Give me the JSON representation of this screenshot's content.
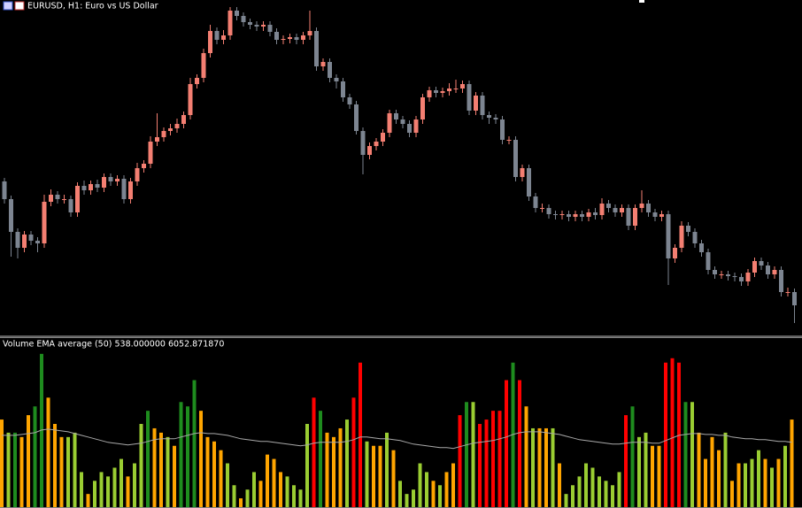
{
  "chart_data": [
    {
      "type": "candlestick",
      "title": "EURUSD, H1:  Euro vs US Dollar",
      "up_color": "#f47f72",
      "down_color": "#7d8591",
      "ylim": [
        0,
        378
      ],
      "open": [
        175,
        155,
        118,
        100,
        115,
        108,
        105,
        152,
        160,
        155,
        155,
        140,
        170,
        165,
        172,
        168,
        180,
        175,
        178,
        155,
        175,
        190,
        195,
        220,
        225,
        232,
        235,
        240,
        250,
        285,
        292,
        320,
        345,
        335,
        340,
        368,
        362,
        355,
        352,
        350,
        352,
        344,
        335,
        336,
        338,
        335,
        340,
        345,
        305,
        310,
        292,
        288,
        270,
        262,
        232,
        205,
        215,
        220,
        230,
        252,
        245,
        240,
        230,
        245,
        270,
        278,
        275,
        277,
        280,
        280,
        285,
        255,
        272,
        250,
        247,
        245,
        222,
        222,
        180,
        190,
        158,
        145,
        145,
        138,
        137,
        138,
        135,
        138,
        135,
        140,
        137,
        150,
        145,
        140,
        145,
        125,
        145,
        150,
        140,
        135,
        138,
        88,
        100,
        125,
        118,
        105,
        95,
        75,
        70,
        70,
        68,
        67,
        62,
        72,
        85,
        80,
        70,
        75,
        50,
        50
      ],
      "high": [
        179,
        159,
        122,
        119,
        119,
        112,
        160,
        166,
        164,
        160,
        159,
        174,
        176,
        176,
        177,
        184,
        184,
        182,
        182,
        179,
        196,
        199,
        226,
        252,
        236,
        240,
        246,
        254,
        292,
        296,
        325,
        352,
        349,
        346,
        372,
        372,
        366,
        359,
        356,
        356,
        356,
        348,
        340,
        342,
        342,
        344,
        368,
        349,
        314,
        314,
        296,
        292,
        274,
        266,
        236,
        219,
        224,
        234,
        256,
        256,
        249,
        244,
        249,
        274,
        282,
        282,
        281,
        286,
        290,
        289,
        289,
        276,
        276,
        254,
        251,
        249,
        226,
        226,
        194,
        194,
        162,
        150,
        149,
        142,
        142,
        142,
        142,
        142,
        144,
        145,
        156,
        154,
        149,
        149,
        149,
        149,
        165,
        154,
        144,
        142,
        142,
        104,
        130,
        129,
        122,
        109,
        99,
        79,
        74,
        74,
        72,
        71,
        76,
        89,
        89,
        84,
        79,
        79,
        55,
        54
      ],
      "low": [
        150,
        90,
        88,
        95,
        103,
        95,
        100,
        147,
        150,
        150,
        135,
        135,
        160,
        160,
        163,
        163,
        170,
        170,
        150,
        150,
        170,
        185,
        190,
        215,
        220,
        227,
        230,
        235,
        245,
        280,
        287,
        315,
        330,
        330,
        335,
        357,
        350,
        347,
        345,
        345,
        339,
        330,
        330,
        331,
        330,
        330,
        335,
        300,
        300,
        287,
        280,
        265,
        257,
        228,
        183,
        200,
        210,
        215,
        225,
        240,
        235,
        225,
        225,
        240,
        265,
        270,
        270,
        272,
        275,
        275,
        250,
        250,
        245,
        240,
        240,
        217,
        217,
        175,
        175,
        153,
        140,
        140,
        133,
        132,
        132,
        130,
        130,
        130,
        130,
        132,
        132,
        140,
        135,
        135,
        120,
        120,
        140,
        135,
        130,
        130,
        58,
        83,
        95,
        113,
        100,
        90,
        70,
        65,
        65,
        63,
        62,
        57,
        57,
        67,
        75,
        65,
        65,
        45,
        45,
        15
      ],
      "close": [
        155,
        118,
        100,
        115,
        108,
        105,
        152,
        160,
        155,
        155,
        140,
        170,
        165,
        172,
        168,
        180,
        175,
        178,
        155,
        175,
        190,
        195,
        220,
        225,
        232,
        235,
        240,
        250,
        285,
        292,
        320,
        345,
        335,
        340,
        368,
        362,
        355,
        352,
        350,
        352,
        344,
        335,
        336,
        338,
        335,
        340,
        345,
        305,
        310,
        292,
        288,
        270,
        262,
        232,
        205,
        215,
        220,
        230,
        252,
        245,
        240,
        230,
        245,
        270,
        278,
        275,
        277,
        280,
        280,
        285,
        255,
        272,
        250,
        247,
        245,
        222,
        222,
        180,
        190,
        158,
        145,
        145,
        138,
        137,
        138,
        135,
        138,
        135,
        140,
        137,
        150,
        145,
        140,
        145,
        125,
        145,
        150,
        140,
        135,
        138,
        88,
        100,
        125,
        118,
        105,
        95,
        75,
        70,
        70,
        68,
        67,
        62,
        72,
        85,
        80,
        70,
        75,
        50,
        50,
        35
      ]
    },
    {
      "type": "bar",
      "title": "Volume EMA average (50) 538.000000 6052.871870",
      "ylim": [
        0,
        190
      ],
      "values": [
        100,
        85,
        85,
        80,
        105,
        115,
        175,
        125,
        95,
        80,
        80,
        85,
        40,
        15,
        30,
        40,
        35,
        45,
        55,
        35,
        50,
        95,
        110,
        90,
        85,
        80,
        70,
        120,
        115,
        145,
        110,
        80,
        75,
        65,
        50,
        25,
        10,
        20,
        40,
        30,
        60,
        55,
        40,
        35,
        25,
        20,
        95,
        125,
        110,
        85,
        80,
        90,
        100,
        125,
        165,
        75,
        70,
        70,
        85,
        65,
        30,
        15,
        20,
        50,
        40,
        30,
        25,
        40,
        50,
        105,
        120,
        120,
        95,
        100,
        110,
        110,
        145,
        165,
        145,
        115,
        90,
        90,
        90,
        90,
        50,
        15,
        25,
        35,
        50,
        45,
        35,
        30,
        25,
        40,
        105,
        115,
        80,
        85,
        70,
        70,
        165,
        170,
        165,
        120,
        120,
        85,
        55,
        80,
        65,
        85,
        30,
        50,
        50,
        55,
        65,
        55,
        45,
        55,
        70,
        100
      ],
      "colors": [
        "#ffa500",
        "#9acd32",
        "#1e8c1e",
        "#ffa500",
        "#ffa500",
        "#1e8c1e",
        "#1e8c1e",
        "#ffa500",
        "#ffa500",
        "#ffa500",
        "#9acd32",
        "#9acd32",
        "#9acd32",
        "#ffa500",
        "#9acd32",
        "#9acd32",
        "#9acd32",
        "#9acd32",
        "#9acd32",
        "#ffa500",
        "#9acd32",
        "#9acd32",
        "#1e8c1e",
        "#ffa500",
        "#ffa500",
        "#9acd32",
        "#ffa500",
        "#1e8c1e",
        "#1e8c1e",
        "#1e8c1e",
        "#ffa500",
        "#ffa500",
        "#ffa500",
        "#ffa500",
        "#9acd32",
        "#9acd32",
        "#ffa500",
        "#9acd32",
        "#9acd32",
        "#ffa500",
        "#ffa500",
        "#ffa500",
        "#ffa500",
        "#9acd32",
        "#9acd32",
        "#9acd32",
        "#9acd32",
        "#ff0000",
        "#1e8c1e",
        "#ffa500",
        "#ffa500",
        "#ffa500",
        "#9acd32",
        "#ff0000",
        "#ff0000",
        "#9acd32",
        "#ffa500",
        "#ffa500",
        "#9acd32",
        "#ffa500",
        "#9acd32",
        "#9acd32",
        "#9acd32",
        "#9acd32",
        "#9acd32",
        "#ffa500",
        "#9acd32",
        "#ffa500",
        "#ffa500",
        "#ff0000",
        "#1e8c1e",
        "#9acd32",
        "#ff0000",
        "#ff0000",
        "#ff0000",
        "#ff0000",
        "#ff0000",
        "#1e8c1e",
        "#ff0000",
        "#ffa500",
        "#9acd32",
        "#ffa500",
        "#ffa500",
        "#9acd32",
        "#ffa500",
        "#9acd32",
        "#9acd32",
        "#9acd32",
        "#9acd32",
        "#9acd32",
        "#9acd32",
        "#9acd32",
        "#9acd32",
        "#9acd32",
        "#ff0000",
        "#1e8c1e",
        "#9acd32",
        "#9acd32",
        "#ffa500",
        "#ffa500",
        "#ff0000",
        "#ff0000",
        "#ff0000",
        "#1e8c1e",
        "#9acd32",
        "#ffa500",
        "#ffa500",
        "#ffa500",
        "#ffa500",
        "#9acd32",
        "#ffa500",
        "#ffa500",
        "#9acd32",
        "#9acd32",
        "#9acd32",
        "#ffa500",
        "#9acd32",
        "#ffa500",
        "#9acd32",
        "#ffa500"
      ],
      "ema": {
        "color": "#a9a9a9",
        "values": [
          82,
          82,
          82,
          83,
          84,
          85,
          88,
          89,
          88,
          87,
          86,
          84,
          82,
          80,
          78,
          76,
          74,
          73,
          72,
          71,
          72,
          73,
          75,
          77,
          78,
          78,
          78,
          80,
          82,
          84,
          85,
          84,
          84,
          83,
          82,
          80,
          78,
          77,
          76,
          75,
          75,
          74,
          73,
          72,
          71,
          70,
          71,
          73,
          74,
          74,
          74,
          74,
          75,
          77,
          80,
          80,
          79,
          78,
          78,
          77,
          76,
          74,
          72,
          71,
          70,
          69,
          68,
          68,
          67,
          69,
          71,
          73,
          74,
          75,
          76,
          78,
          80,
          83,
          85,
          86,
          86,
          86,
          85,
          84,
          83,
          81,
          79,
          77,
          76,
          75,
          74,
          73,
          72,
          72,
          73,
          74,
          74,
          74,
          73,
          73,
          76,
          79,
          82,
          83,
          84,
          84,
          83,
          83,
          82,
          82,
          80,
          79,
          78,
          78,
          77,
          77,
          76,
          75,
          75,
          74
        ]
      }
    }
  ]
}
